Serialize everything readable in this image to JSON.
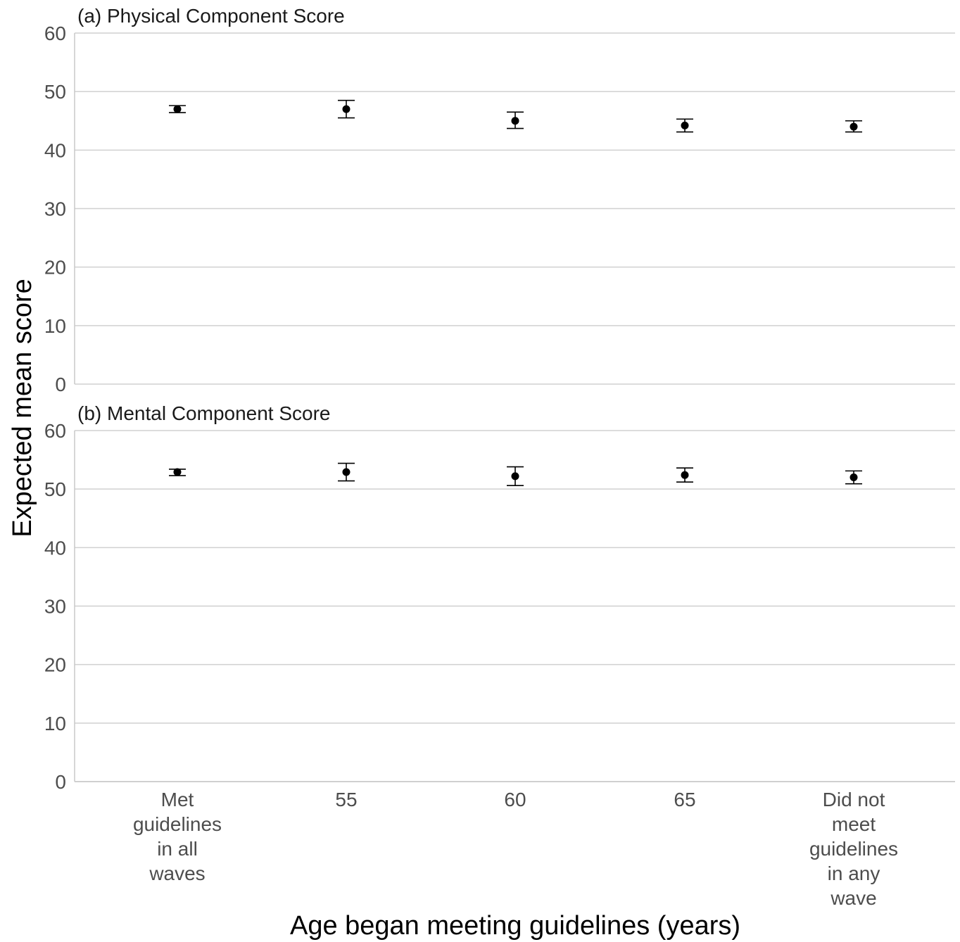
{
  "chart_data": [
    {
      "type": "scatter",
      "title": "(a) Physical Component Score",
      "categories": [
        "Met\nguidelines\nin all\nwaves",
        "55",
        "60",
        "65",
        "Did not\nmeet\nguidelines\nin any\nwave"
      ],
      "values": [
        47.0,
        47.0,
        45.0,
        44.2,
        44.0
      ],
      "lower": [
        46.4,
        45.5,
        43.7,
        43.1,
        43.1
      ],
      "upper": [
        47.6,
        48.5,
        46.5,
        45.3,
        45.0
      ],
      "ylim": [
        0,
        60
      ],
      "yticks": [
        0,
        10,
        20,
        30,
        40,
        50,
        60
      ],
      "grid": true
    },
    {
      "type": "scatter",
      "title": "(b) Mental Component Score",
      "categories": [
        "Met\nguidelines\nin all\nwaves",
        "55",
        "60",
        "65",
        "Did not\nmeet\nguidelines\nin any\nwave"
      ],
      "values": [
        52.9,
        52.9,
        52.2,
        52.4,
        52.0
      ],
      "lower": [
        52.3,
        51.4,
        50.6,
        51.2,
        50.9
      ],
      "upper": [
        53.4,
        54.4,
        53.8,
        53.6,
        53.1
      ],
      "ylim": [
        0,
        60
      ],
      "yticks": [
        0,
        10,
        20,
        30,
        40,
        50,
        60
      ],
      "grid": true
    }
  ],
  "xlabel": "Age began meeting guidelines (years)",
  "ylabel": "Expected mean score"
}
